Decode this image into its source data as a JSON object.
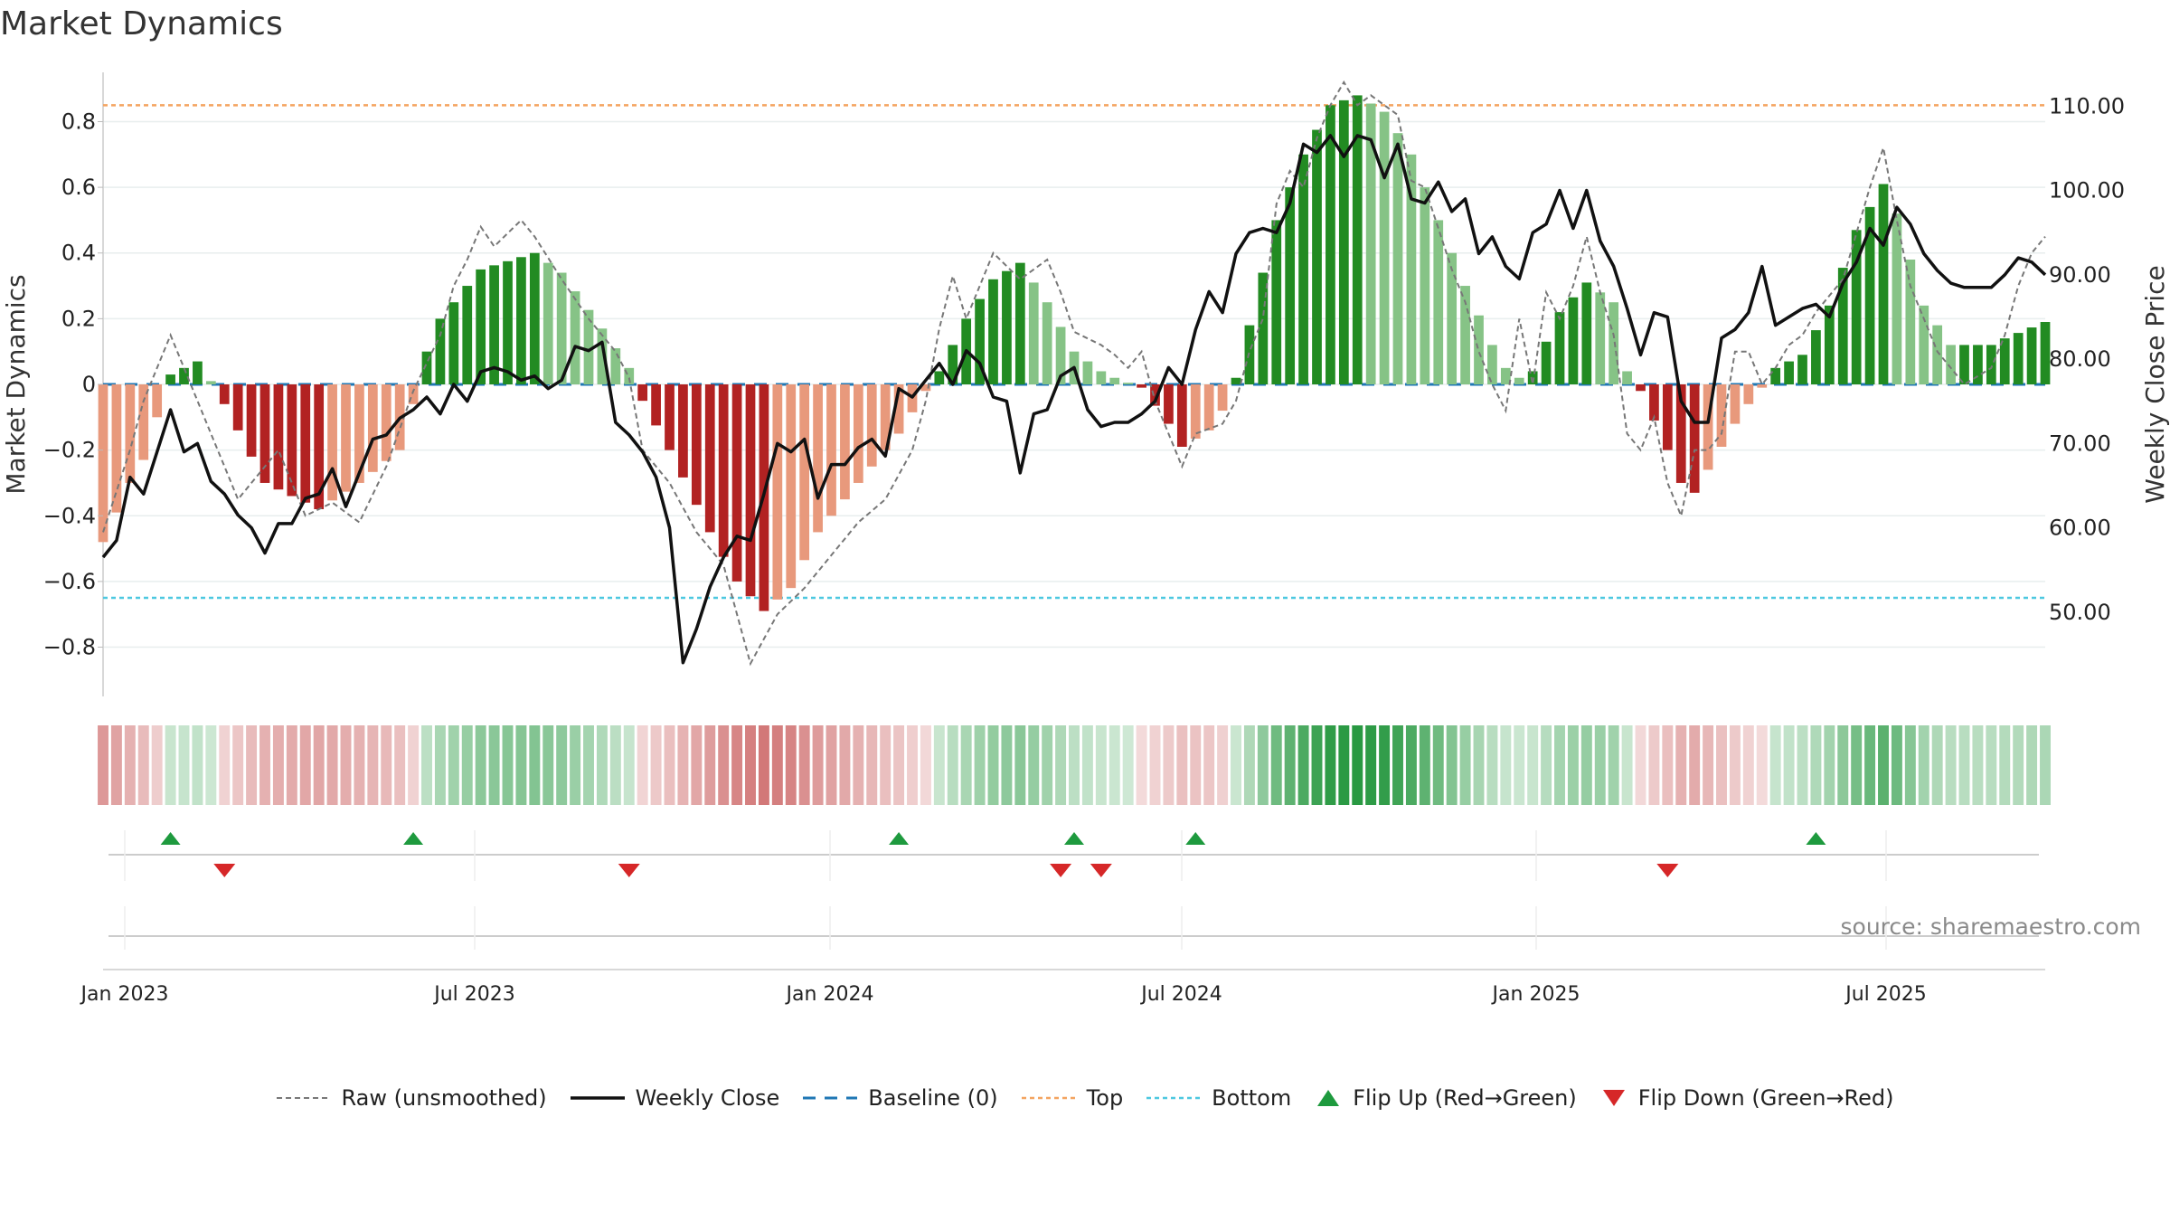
{
  "title": "Market Dynamics",
  "source_text": "source: sharemaestro.com",
  "colors": {
    "green_strong": "#228b22",
    "green_light": "#86c386",
    "red_strong": "#b22222",
    "red_light": "#e8997c",
    "price_line": "#111111",
    "raw_line": "#777777",
    "baseline": "#1f77b4",
    "top": "#f4a460",
    "bottom": "#4dc8e0",
    "flip_up": "#1e9a3e",
    "flip_down": "#d62728"
  },
  "legend": [
    {
      "key": "raw",
      "label": "Raw (unsmoothed)"
    },
    {
      "key": "close",
      "label": "Weekly Close"
    },
    {
      "key": "baseline",
      "label": "Baseline (0)"
    },
    {
      "key": "top",
      "label": "Top"
    },
    {
      "key": "bottom",
      "label": "Bottom"
    },
    {
      "key": "flip_up",
      "label": "Flip Up (Red→Green)"
    },
    {
      "key": "flip_down",
      "label": "Flip Down (Green→Red)"
    }
  ],
  "chart_data": {
    "type": "bar",
    "title": "Market Dynamics",
    "ylabel": "Market Dynamics",
    "y2label": "Weekly Close Price",
    "ylim": [
      -0.95,
      0.95
    ],
    "y2lim": [
      40,
      114
    ],
    "yticks": [
      "0.8",
      "0.6",
      "0.4",
      "0.2",
      "0",
      "−0.2",
      "−0.4",
      "−0.6",
      "−0.8"
    ],
    "y2ticks": [
      "110.00",
      "100.00",
      "90.00",
      "80.00",
      "70.00",
      "60.00",
      "50.00"
    ],
    "xticks": [
      "Jan 2023",
      "Jul 2023",
      "Jan 2024",
      "Jul 2024",
      "Jan 2025",
      "Jul 2025"
    ],
    "top_line": 0.85,
    "bottom_line": -0.65,
    "baseline": 0,
    "weeks": 145,
    "grid": true,
    "legend_position": "bottom",
    "dynamics_keyframes": [
      [
        0,
        -0.48
      ],
      [
        2,
        -0.3
      ],
      [
        3,
        -0.23
      ],
      [
        4,
        -0.1
      ],
      [
        5,
        0.03
      ],
      [
        7,
        0.07
      ],
      [
        8,
        0.01
      ],
      [
        9,
        -0.06
      ],
      [
        12,
        -0.3
      ],
      [
        16,
        -0.38
      ],
      [
        19,
        -0.3
      ],
      [
        22,
        -0.2
      ],
      [
        23,
        -0.06
      ],
      [
        24,
        0.1
      ],
      [
        25,
        0.2
      ],
      [
        28,
        0.35
      ],
      [
        32,
        0.4
      ],
      [
        34,
        0.34
      ],
      [
        37,
        0.17
      ],
      [
        39,
        0.05
      ],
      [
        40,
        -0.05
      ],
      [
        42,
        -0.2
      ],
      [
        45,
        -0.45
      ],
      [
        47,
        -0.6
      ],
      [
        49,
        -0.69
      ],
      [
        51,
        -0.62
      ],
      [
        53,
        -0.45
      ],
      [
        56,
        -0.3
      ],
      [
        59,
        -0.15
      ],
      [
        61,
        -0.02
      ],
      [
        62,
        0.04
      ],
      [
        64,
        0.2
      ],
      [
        66,
        0.32
      ],
      [
        68,
        0.37
      ],
      [
        70,
        0.25
      ],
      [
        72,
        0.1
      ],
      [
        74,
        0.04
      ],
      [
        75,
        0.02
      ],
      [
        77,
        -0.01
      ],
      [
        79,
        -0.12
      ],
      [
        80,
        -0.19
      ],
      [
        82,
        -0.14
      ],
      [
        83,
        -0.08
      ],
      [
        84,
        0.02
      ],
      [
        85,
        0.18
      ],
      [
        87,
        0.5
      ],
      [
        89,
        0.7
      ],
      [
        91,
        0.85
      ],
      [
        93,
        0.88
      ],
      [
        95,
        0.83
      ],
      [
        97,
        0.7
      ],
      [
        99,
        0.5
      ],
      [
        101,
        0.3
      ],
      [
        103,
        0.12
      ],
      [
        104,
        0.05
      ],
      [
        105,
        0.02
      ],
      [
        106,
        0.04
      ],
      [
        108,
        0.22
      ],
      [
        110,
        0.31
      ],
      [
        112,
        0.25
      ],
      [
        113,
        0.04
      ],
      [
        114,
        -0.02
      ],
      [
        116,
        -0.2
      ],
      [
        117,
        -0.3
      ],
      [
        118,
        -0.33
      ],
      [
        121,
        -0.12
      ],
      [
        122,
        -0.06
      ],
      [
        123,
        -0.01
      ],
      [
        124,
        0.05
      ],
      [
        126,
        0.09
      ],
      [
        128,
        0.24
      ],
      [
        130,
        0.47
      ],
      [
        132,
        0.61
      ],
      [
        133,
        0.52
      ],
      [
        135,
        0.24
      ],
      [
        137,
        0.12
      ],
      [
        140,
        0.12
      ],
      [
        141,
        0.14
      ],
      [
        144,
        0.19
      ]
    ],
    "raw_keyframes": [
      [
        0,
        -0.45
      ],
      [
        2,
        -0.2
      ],
      [
        3,
        -0.05
      ],
      [
        5,
        0.15
      ],
      [
        6,
        0.05
      ],
      [
        8,
        -0.15
      ],
      [
        10,
        -0.35
      ],
      [
        11,
        -0.3
      ],
      [
        13,
        -0.2
      ],
      [
        15,
        -0.4
      ],
      [
        17,
        -0.36
      ],
      [
        19,
        -0.42
      ],
      [
        21,
        -0.25
      ],
      [
        23,
        -0.02
      ],
      [
        25,
        0.15
      ],
      [
        26,
        0.3
      ],
      [
        27,
        0.38
      ],
      [
        28,
        0.48
      ],
      [
        29,
        0.42
      ],
      [
        31,
        0.5
      ],
      [
        32,
        0.45
      ],
      [
        34,
        0.32
      ],
      [
        36,
        0.2
      ],
      [
        38,
        0.1
      ],
      [
        39,
        0.02
      ],
      [
        40,
        -0.2
      ],
      [
        42,
        -0.3
      ],
      [
        44,
        -0.45
      ],
      [
        46,
        -0.55
      ],
      [
        48,
        -0.85
      ],
      [
        50,
        -0.7
      ],
      [
        52,
        -0.62
      ],
      [
        54,
        -0.52
      ],
      [
        56,
        -0.42
      ],
      [
        58,
        -0.35
      ],
      [
        60,
        -0.2
      ],
      [
        61,
        -0.05
      ],
      [
        62,
        0.17
      ],
      [
        63,
        0.33
      ],
      [
        64,
        0.2
      ],
      [
        66,
        0.4
      ],
      [
        68,
        0.32
      ],
      [
        70,
        0.38
      ],
      [
        71,
        0.28
      ],
      [
        72,
        0.16
      ],
      [
        74,
        0.12
      ],
      [
        75,
        0.09
      ],
      [
        76,
        0.05
      ],
      [
        77,
        0.1
      ],
      [
        78,
        -0.05
      ],
      [
        80,
        -0.25
      ],
      [
        81,
        -0.15
      ],
      [
        83,
        -0.12
      ],
      [
        84,
        -0.05
      ],
      [
        85,
        0.1
      ],
      [
        86,
        0.2
      ],
      [
        87,
        0.55
      ],
      [
        88,
        0.65
      ],
      [
        89,
        0.6
      ],
      [
        90,
        0.75
      ],
      [
        91,
        0.85
      ],
      [
        92,
        0.92
      ],
      [
        93,
        0.85
      ],
      [
        94,
        0.88
      ],
      [
        96,
        0.82
      ],
      [
        97,
        0.62
      ],
      [
        98,
        0.6
      ],
      [
        100,
        0.35
      ],
      [
        101,
        0.25
      ],
      [
        102,
        0.1
      ],
      [
        103,
        0.0
      ],
      [
        104,
        -0.08
      ],
      [
        105,
        0.2
      ],
      [
        106,
        0.0
      ],
      [
        107,
        0.28
      ],
      [
        108,
        0.2
      ],
      [
        109,
        0.3
      ],
      [
        110,
        0.45
      ],
      [
        111,
        0.28
      ],
      [
        112,
        0.15
      ],
      [
        113,
        -0.15
      ],
      [
        114,
        -0.2
      ],
      [
        115,
        -0.1
      ],
      [
        116,
        -0.3
      ],
      [
        117,
        -0.4
      ],
      [
        118,
        -0.2
      ],
      [
        119,
        -0.2
      ],
      [
        120,
        -0.15
      ],
      [
        121,
        0.1
      ],
      [
        122,
        0.1
      ],
      [
        123,
        0.0
      ],
      [
        124,
        0.05
      ],
      [
        125,
        0.12
      ],
      [
        126,
        0.15
      ],
      [
        127,
        0.22
      ],
      [
        129,
        0.32
      ],
      [
        131,
        0.6
      ],
      [
        132,
        0.72
      ],
      [
        133,
        0.5
      ],
      [
        134,
        0.3
      ],
      [
        135,
        0.2
      ],
      [
        136,
        0.1
      ],
      [
        138,
        0.0
      ],
      [
        140,
        0.05
      ],
      [
        141,
        0.15
      ],
      [
        142,
        0.3
      ],
      [
        143,
        0.4
      ],
      [
        144,
        0.45
      ]
    ],
    "price_keyframes": [
      [
        0,
        56.5
      ],
      [
        1,
        58.5
      ],
      [
        2,
        66
      ],
      [
        3,
        64
      ],
      [
        4,
        69
      ],
      [
        5,
        74
      ],
      [
        6,
        69
      ],
      [
        7,
        70
      ],
      [
        8,
        65.5
      ],
      [
        9,
        64
      ],
      [
        10,
        61.5
      ],
      [
        11,
        60
      ],
      [
        12,
        57
      ],
      [
        13,
        60.5
      ],
      [
        14,
        60.5
      ],
      [
        15,
        63.5
      ],
      [
        16,
        64
      ],
      [
        17,
        67
      ],
      [
        18,
        62.5
      ],
      [
        19,
        66.5
      ],
      [
        20,
        70.5
      ],
      [
        21,
        71
      ],
      [
        22,
        73
      ],
      [
        23,
        74
      ],
      [
        24,
        75.5
      ],
      [
        25,
        73.5
      ],
      [
        26,
        77
      ],
      [
        27,
        75
      ],
      [
        28,
        78.5
      ],
      [
        29,
        79
      ],
      [
        30,
        78.5
      ],
      [
        31,
        77.5
      ],
      [
        32,
        78
      ],
      [
        33,
        76.5
      ],
      [
        34,
        77.5
      ],
      [
        35,
        81.5
      ],
      [
        36,
        81
      ],
      [
        37,
        82
      ],
      [
        38,
        72.5
      ],
      [
        39,
        71
      ],
      [
        40,
        69
      ],
      [
        41,
        66
      ],
      [
        42,
        60
      ],
      [
        43,
        44
      ],
      [
        44,
        48
      ],
      [
        45,
        53
      ],
      [
        46,
        56.5
      ],
      [
        47,
        59
      ],
      [
        48,
        58.5
      ],
      [
        49,
        64
      ],
      [
        50,
        70
      ],
      [
        51,
        69
      ],
      [
        52,
        70.5
      ],
      [
        53,
        63.5
      ],
      [
        54,
        67.5
      ],
      [
        55,
        67.5
      ],
      [
        56,
        69.5
      ],
      [
        57,
        70.5
      ],
      [
        58,
        68.5
      ],
      [
        59,
        76.5
      ],
      [
        60,
        75.5
      ],
      [
        61,
        77.5
      ],
      [
        62,
        79.5
      ],
      [
        63,
        77
      ],
      [
        64,
        81
      ],
      [
        65,
        79.5
      ],
      [
        66,
        75.5
      ],
      [
        67,
        75
      ],
      [
        68,
        66.5
      ],
      [
        69,
        73.5
      ],
      [
        70,
        74
      ],
      [
        71,
        78
      ],
      [
        72,
        79
      ],
      [
        73,
        74
      ],
      [
        74,
        72
      ],
      [
        75,
        72.5
      ],
      [
        76,
        72.5
      ],
      [
        77,
        73.5
      ],
      [
        78,
        75
      ],
      [
        79,
        79
      ],
      [
        80,
        77
      ],
      [
        81,
        83.5
      ],
      [
        82,
        88
      ],
      [
        83,
        85.5
      ],
      [
        84,
        92.5
      ],
      [
        85,
        95
      ],
      [
        86,
        95.5
      ],
      [
        87,
        95
      ],
      [
        88,
        98.5
      ],
      [
        89,
        105.5
      ],
      [
        90,
        104.5
      ],
      [
        91,
        106.5
      ],
      [
        92,
        104
      ],
      [
        93,
        106.5
      ],
      [
        94,
        106
      ],
      [
        95,
        101.5
      ],
      [
        96,
        105.5
      ],
      [
        97,
        99
      ],
      [
        98,
        98.5
      ],
      [
        99,
        101
      ],
      [
        100,
        97.5
      ],
      [
        101,
        99
      ],
      [
        102,
        92.5
      ],
      [
        103,
        94.5
      ],
      [
        104,
        91
      ],
      [
        105,
        89.5
      ],
      [
        106,
        95
      ],
      [
        107,
        96
      ],
      [
        108,
        100
      ],
      [
        109,
        95.5
      ],
      [
        110,
        100
      ],
      [
        111,
        94
      ],
      [
        112,
        91
      ],
      [
        113,
        86
      ],
      [
        114,
        80.5
      ],
      [
        115,
        85.5
      ],
      [
        116,
        85
      ],
      [
        117,
        75
      ],
      [
        118,
        72.5
      ],
      [
        119,
        72.5
      ],
      [
        120,
        82.5
      ],
      [
        121,
        83.5
      ],
      [
        122,
        85.5
      ],
      [
        123,
        91
      ],
      [
        124,
        84
      ],
      [
        125,
        85
      ],
      [
        126,
        86
      ],
      [
        127,
        86.5
      ],
      [
        128,
        85
      ],
      [
        129,
        89
      ],
      [
        130,
        91.5
      ],
      [
        131,
        95.5
      ],
      [
        132,
        93.5
      ],
      [
        133,
        98
      ],
      [
        134,
        96
      ],
      [
        135,
        92.5
      ],
      [
        136,
        90.5
      ],
      [
        137,
        89
      ],
      [
        138,
        88.5
      ],
      [
        139,
        88.5
      ],
      [
        140,
        88.5
      ],
      [
        141,
        90
      ],
      [
        142,
        92
      ],
      [
        143,
        91.5
      ],
      [
        144,
        90
      ]
    ],
    "flip_up_weeks": [
      5,
      23,
      59,
      72,
      81,
      127
    ],
    "flip_down_weeks": [
      9,
      39,
      71,
      74,
      116
    ]
  }
}
